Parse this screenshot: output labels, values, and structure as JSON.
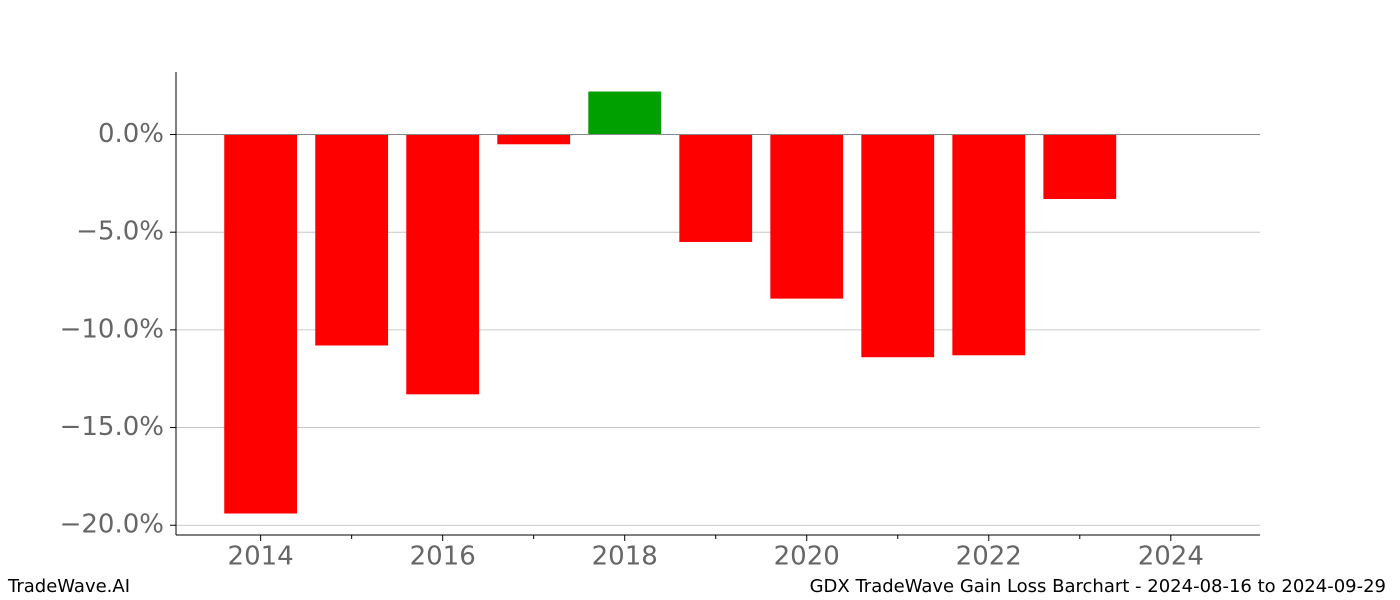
{
  "chart_data": {
    "type": "bar",
    "x": [
      2014,
      2015,
      2016,
      2017,
      2018,
      2019,
      2020,
      2021,
      2022,
      2023
    ],
    "values": [
      -19.4,
      -10.8,
      -13.3,
      -0.5,
      2.2,
      -5.5,
      -8.4,
      -11.4,
      -11.3,
      -3.3
    ],
    "colors": [
      "#ff0000",
      "#ff0000",
      "#ff0000",
      "#ff0000",
      "#00a000",
      "#ff0000",
      "#ff0000",
      "#ff0000",
      "#ff0000",
      "#ff0000"
    ],
    "bar_width": 0.8,
    "xlim": [
      2013.07,
      2024.98
    ],
    "xticks": [
      2014,
      2016,
      2018,
      2020,
      2022,
      2024
    ],
    "xticks_minor": [
      2015,
      2017,
      2019,
      2021,
      2023
    ],
    "ylim": [
      -20.5,
      3.2
    ],
    "yticks": [
      {
        "value": 0,
        "label": "0.0%"
      },
      {
        "value": -5,
        "label": "−5.0%"
      },
      {
        "value": -10,
        "label": "−10.0%"
      },
      {
        "value": -15,
        "label": "−15.0%"
      },
      {
        "value": -20,
        "label": "−20.0%"
      }
    ],
    "grid": true,
    "footer_left": "TradeWave.AI",
    "footer_right": "GDX TradeWave Gain Loss Barchart - 2024-08-16 to 2024-09-29"
  }
}
